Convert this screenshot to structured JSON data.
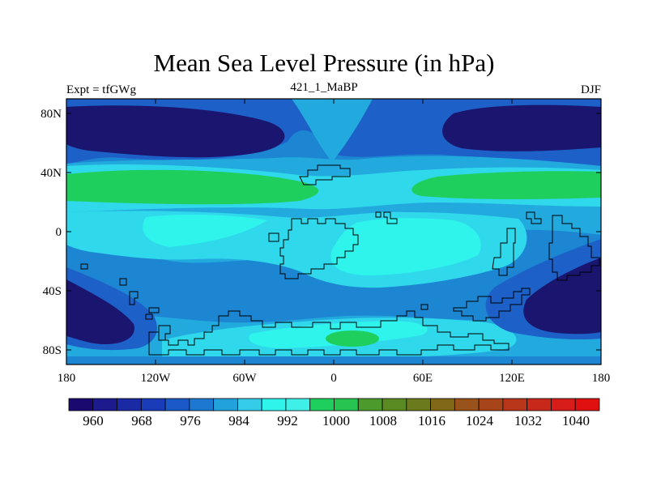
{
  "title": "Mean Sea Level Pressure (in hPa)",
  "subtitle_left": "Expt = tfGWg",
  "subtitle_center": "421_1_MaBP",
  "subtitle_right": "DJF",
  "map": {
    "lon_ticks": [
      "180",
      "120W",
      "60W",
      "0",
      "60E",
      "120E",
      "180"
    ],
    "lat_ticks": [
      "80N",
      "40N",
      "0",
      "40S",
      "80S"
    ],
    "lon_values": [
      -180,
      -120,
      -60,
      0,
      60,
      120,
      180
    ],
    "lat_values": [
      80,
      40,
      0,
      -40,
      -80
    ]
  },
  "colorbar": {
    "labels": [
      "960",
      "968",
      "976",
      "984",
      "992",
      "1000",
      "1008",
      "1016",
      "1024",
      "1032",
      "1040"
    ],
    "colors": [
      "#1a0a70",
      "#1c1a8c",
      "#1a2aa4",
      "#1a3cb8",
      "#1a5ac8",
      "#1c78d0",
      "#22a2dc",
      "#35ccea",
      "#2ef4ec",
      "#3ff0e8",
      "#1fcf5e",
      "#28c452",
      "#4c9a2c",
      "#5a8a22",
      "#6a7a1c",
      "#806818",
      "#98521a",
      "#a8441a",
      "#b8361a",
      "#c8281a",
      "#d81c1a",
      "#e01010"
    ]
  },
  "fills": {
    "deep": "#1a1670",
    "dark": "#1a2aa4",
    "mid": "#1c60c8",
    "medium": "#1c86d2",
    "light": "#22aadf",
    "cyan": "#30d8ec",
    "bright": "#2ef4ec",
    "green": "#1fcf5e"
  }
}
